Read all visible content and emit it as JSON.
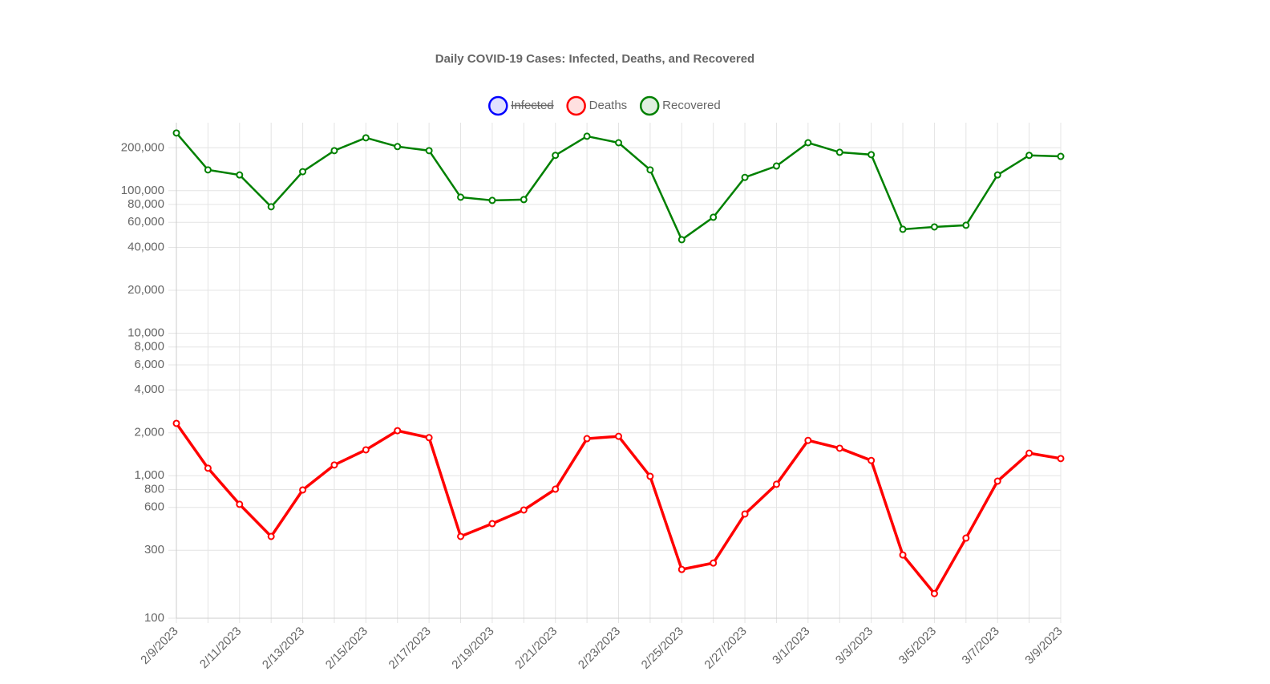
{
  "chart_data": {
    "type": "line",
    "title": "Daily COVID-19 Cases: Infected, Deaths, and Recovered",
    "categories": [
      "2/9/2023",
      null,
      "2/11/2023",
      null,
      "2/13/2023",
      null,
      "2/15/2023",
      null,
      "2/17/2023",
      null,
      "2/19/2023",
      null,
      "2/21/2023",
      null,
      "2/23/2023",
      null,
      "2/25/2023",
      null,
      "2/27/2023",
      null,
      "3/1/2023",
      null,
      "3/3/2023",
      null,
      "3/5/2023",
      null,
      "3/7/2023",
      null,
      "3/9/2023"
    ],
    "series": [
      {
        "name": "Infected",
        "color": "#0000ff",
        "hidden": true
      },
      {
        "name": "Deaths",
        "color": "#ff0000",
        "values": [
          2330,
          1130,
          630,
          375,
          795,
          1190,
          1520,
          2070,
          1850,
          375,
          461,
          575,
          805,
          1820,
          1890,
          990,
          220,
          244,
          539,
          871,
          1770,
          1560,
          1280,
          278,
          149,
          365,
          916,
          1440,
          1320
        ]
      },
      {
        "name": "Recovered",
        "color": "#008000",
        "values": [
          254000,
          140000,
          129000,
          77100,
          136000,
          191000,
          235000,
          204000,
          191000,
          90000,
          85500,
          86600,
          177000,
          241000,
          217000,
          140000,
          45300,
          65100,
          124000,
          149000,
          217000,
          186000,
          179000,
          53600,
          55700,
          57200,
          129000,
          177000,
          174000
        ]
      }
    ],
    "log_scale": true,
    "ylim": [
      100,
      300000
    ],
    "yticks": [
      100,
      300,
      600,
      800,
      {
        "value": 1000,
        "label": "1,000"
      },
      {
        "value": 2000,
        "label": "2,000"
      },
      {
        "value": 4000,
        "label": "4,000"
      },
      {
        "value": 6000,
        "label": "6,000"
      },
      {
        "value": 8000,
        "label": "8,000"
      },
      {
        "value": 10000,
        "label": "10,000"
      },
      {
        "value": 20000,
        "label": "20,000"
      },
      {
        "value": 40000,
        "label": "40,000"
      },
      {
        "value": 60000,
        "label": "60,000"
      },
      {
        "value": 80000,
        "label": "80,000"
      },
      {
        "value": 100000,
        "label": "100,000"
      },
      {
        "value": 200000,
        "label": "200,000"
      }
    ],
    "grid": true,
    "legend": "top"
  }
}
